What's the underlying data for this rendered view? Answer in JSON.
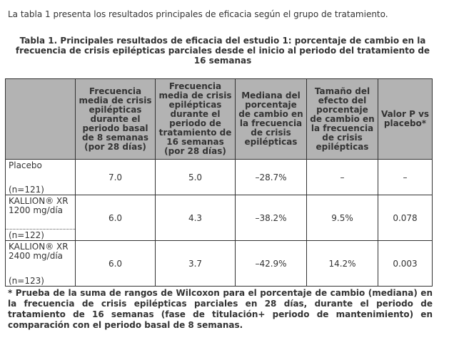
{
  "intro_text": "La tabla 1 presenta los resultados principales de eficacia según el grupo de tratamiento.",
  "caption": "Tabla 1. Principales resultados de eficacia del estudio 1: porcentaje de cambio en la frecuencia de crisis epilépticas parciales desde el inicio al periodo del tratamiento de 16 semanas",
  "table": {
    "headers": [
      "",
      "Frecuencia media de crisis epilépticas durante el periodo basal de 8 semanas (por 28 días)",
      "Frecuencia media de crisis epilépticas durante el periodo de tratamiento de 16 semanas (por 28 días)",
      "Mediana del porcentaje de cambio en la frecuencia de crisis epilépticas",
      "Tamaño del efecto del porcentaje de cambio en la frecuencia de crisis epilépticas",
      "Valor P vs placebo*"
    ],
    "rows": [
      {
        "group": "Placebo",
        "n": "(n=121)",
        "baseline": "7.0",
        "treatment": "5.0",
        "median_change": "–28.7%",
        "effect_size": "–",
        "p_value": "–"
      },
      {
        "group": "KALLION® XR 1200 mg/día",
        "n": "(n=122)",
        "baseline": "6.0",
        "treatment": "4.3",
        "median_change": "–38.2%",
        "effect_size": "9.5%",
        "p_value": "0.078"
      },
      {
        "group": "KALLION® XR 2400 mg/día",
        "n": "(n=123)",
        "baseline": "6.0",
        "treatment": "3.7",
        "median_change": "–42.9%",
        "effect_size": "14.2%",
        "p_value": "0.003"
      }
    ]
  },
  "footnote": "* Prueba de la suma de rangos de Wilcoxon para el porcentaje de cambio (mediana) en la frecuencia de crisis epilépticas parciales en 28 días, durante el periodo de tratamiento de 16 semanas (fase de titulación+ periodo de mantenimiento) en comparación con el periodo basal de 8 semanas.",
  "colors": {
    "header_bg": "#b3b3b3",
    "text": "#333333",
    "border": "#333333"
  }
}
